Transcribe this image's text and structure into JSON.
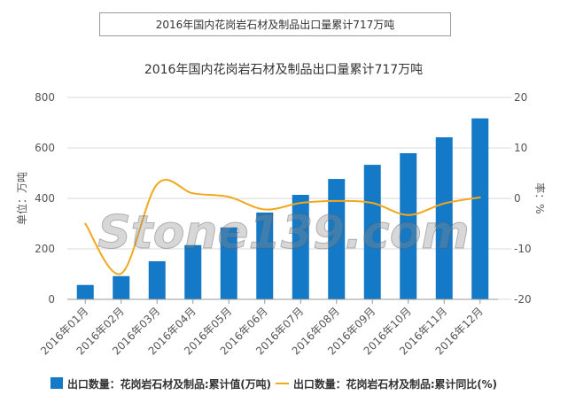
{
  "header_box": {
    "title": "2016年国内花岗岩石材及制品出口量累计717万吨"
  },
  "chart_data": {
    "type": "bar+line",
    "title": "2016年国内花岗岩石材及制品出口量累计717万吨",
    "categories": [
      "2016年01月",
      "2016年02月",
      "2016年03月",
      "2016年04月",
      "2016年05月",
      "2016年06月",
      "2016年07月",
      "2016年08月",
      "2016年09月",
      "2016年10月",
      "2016年11月",
      "2016年12月"
    ],
    "ylabel": "单位：万吨",
    "ylabel_right": "率：%",
    "ylim": [
      0,
      800
    ],
    "yticks": [
      "0",
      "200",
      "400",
      "600",
      "800"
    ],
    "ylim_right": [
      -20,
      20
    ],
    "yticks_right": [
      "-20",
      "-10",
      "0",
      "10",
      "20"
    ],
    "grid": true,
    "legend_position": "bottom",
    "series": [
      {
        "name": "出口数量：花岗岩石材及制品:累计值(万吨)",
        "type": "bar",
        "axis": "left",
        "color": "#1479c6",
        "values": [
          57,
          92,
          151,
          215,
          285,
          344,
          414,
          477,
          533,
          579,
          642,
          717
        ]
      },
      {
        "name": "出口数量：花岗岩石材及制品:累计同比(%)",
        "type": "line",
        "axis": "right",
        "color": "#f2a81d",
        "values": [
          -5.0,
          -14.9,
          2.8,
          1.0,
          0.3,
          -2.2,
          -0.9,
          -0.5,
          -0.9,
          -3.3,
          -1.0,
          0.2
        ]
      }
    ]
  },
  "watermark": "Stone139.com"
}
